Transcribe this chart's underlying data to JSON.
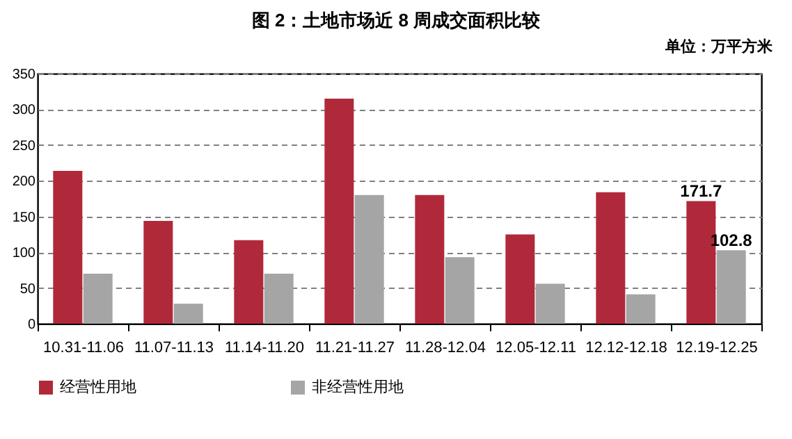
{
  "chart_data": {
    "type": "bar",
    "title": "图 2：土地市场近 8 周成交面积比较",
    "subtitle": "单位：万平方米",
    "categories": [
      "10.31-11.06",
      "11.07-11.13",
      "11.14-11.20",
      "11.21-11.27",
      "11.28-12.04",
      "12.05-12.11",
      "12.12-12.18",
      "12.19-12.25"
    ],
    "series": [
      {
        "name": "经营性用地",
        "color": "#b0293a",
        "values": [
          214,
          144,
          117,
          315,
          180,
          125,
          184,
          171.7
        ],
        "value_labels": [
          null,
          null,
          null,
          null,
          null,
          null,
          null,
          "171.7"
        ]
      },
      {
        "name": "非经营性用地",
        "color": "#a5a5a5",
        "values": [
          70,
          28,
          70,
          180,
          93,
          56,
          41,
          102.8
        ],
        "value_labels": [
          null,
          null,
          null,
          null,
          null,
          null,
          null,
          "102.8"
        ]
      }
    ],
    "ylim": [
      0,
      350
    ],
    "yticks": [
      0,
      50,
      100,
      150,
      200,
      250,
      300,
      350
    ],
    "grid": "y",
    "legend": "bottom"
  }
}
